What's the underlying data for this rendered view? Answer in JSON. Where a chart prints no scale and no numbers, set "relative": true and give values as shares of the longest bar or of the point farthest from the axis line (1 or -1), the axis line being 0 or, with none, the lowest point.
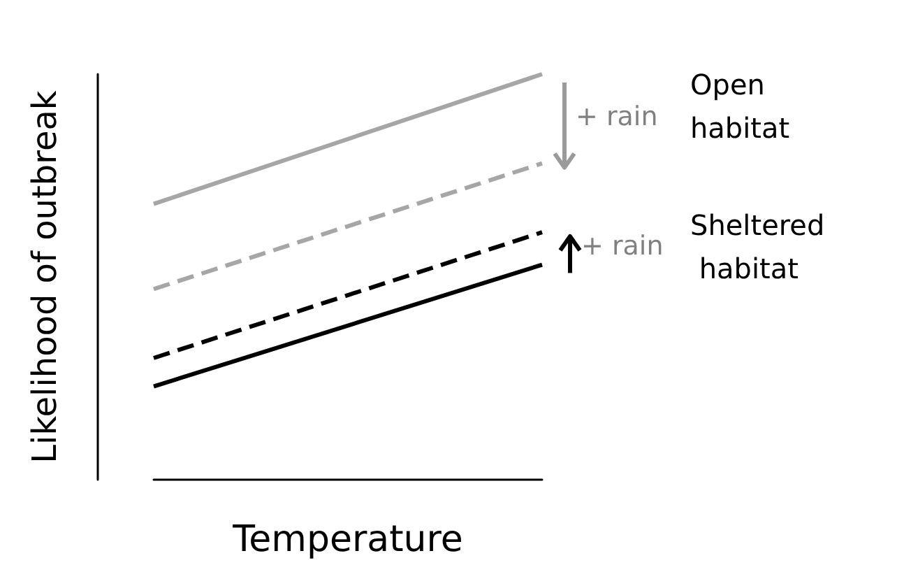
{
  "chart_data": {
    "type": "line",
    "relative": true,
    "xlabel": "Temperature",
    "ylabel": "Likelihood of outbreak",
    "categories": [
      null,
      null
    ],
    "grid": false,
    "marker": "none",
    "series": [
      {
        "color": "#a6a6a6",
        "line_style": "solid",
        "values": [
          0.68,
          1.0
        ]
      },
      {
        "color": "#a6a6a6",
        "line_style": "dashed",
        "values": [
          0.47,
          0.78
        ]
      },
      {
        "color": "#000000",
        "line_style": "dashed",
        "values": [
          0.3,
          0.61
        ]
      },
      {
        "color": "#000000",
        "line_style": "solid",
        "values": [
          0.23,
          0.53
        ]
      }
    ],
    "annotations": [
      "+ rain",
      "Open habitat",
      "+ rain",
      "Sheltered habitat"
    ]
  }
}
